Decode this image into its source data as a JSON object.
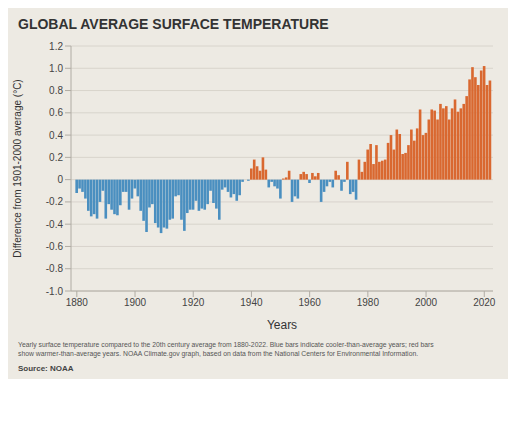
{
  "chart_data": {
    "type": "bar",
    "title": "GLOBAL AVERAGE SURFACE TEMPERATURE",
    "x_label": "Years",
    "y_label": "Difference from 1901-2000 average (°C)",
    "caption": [
      "Yearly surface temperature compared to the 20th century average from 1880-2022. Blue bars indicate cooler-than-average years; red bars",
      "show warmer-than-average years. NOAA Climate.gov graph, based on data from the National Centers for Environmental Information."
    ],
    "source": "Source: NOAA",
    "x": [
      1880,
      1881,
      1882,
      1883,
      1884,
      1885,
      1886,
      1887,
      1888,
      1889,
      1890,
      1891,
      1892,
      1893,
      1894,
      1895,
      1896,
      1897,
      1898,
      1899,
      1900,
      1901,
      1902,
      1903,
      1904,
      1905,
      1906,
      1907,
      1908,
      1909,
      1910,
      1911,
      1912,
      1913,
      1914,
      1915,
      1916,
      1917,
      1918,
      1919,
      1920,
      1921,
      1922,
      1923,
      1924,
      1925,
      1926,
      1927,
      1928,
      1929,
      1930,
      1931,
      1932,
      1933,
      1934,
      1935,
      1936,
      1937,
      1938,
      1939,
      1940,
      1941,
      1942,
      1943,
      1944,
      1945,
      1946,
      1947,
      1948,
      1949,
      1950,
      1951,
      1952,
      1953,
      1954,
      1955,
      1956,
      1957,
      1958,
      1959,
      1960,
      1961,
      1962,
      1963,
      1964,
      1965,
      1966,
      1967,
      1968,
      1969,
      1970,
      1971,
      1972,
      1973,
      1974,
      1975,
      1976,
      1977,
      1978,
      1979,
      1980,
      1981,
      1982,
      1983,
      1984,
      1985,
      1986,
      1987,
      1988,
      1989,
      1990,
      1991,
      1992,
      1993,
      1994,
      1995,
      1996,
      1997,
      1998,
      1999,
      2000,
      2001,
      2002,
      2003,
      2004,
      2005,
      2006,
      2007,
      2008,
      2009,
      2010,
      2011,
      2012,
      2013,
      2014,
      2015,
      2016,
      2017,
      2018,
      2019,
      2020,
      2021,
      2022
    ],
    "values": [
      -0.12,
      -0.08,
      -0.11,
      -0.17,
      -0.28,
      -0.33,
      -0.31,
      -0.35,
      -0.2,
      -0.1,
      -0.35,
      -0.22,
      -0.27,
      -0.31,
      -0.32,
      -0.23,
      -0.11,
      -0.11,
      -0.27,
      -0.17,
      -0.08,
      -0.15,
      -0.28,
      -0.37,
      -0.47,
      -0.25,
      -0.22,
      -0.39,
      -0.43,
      -0.48,
      -0.43,
      -0.44,
      -0.36,
      -0.35,
      -0.15,
      -0.14,
      -0.36,
      -0.46,
      -0.3,
      -0.27,
      -0.27,
      -0.19,
      -0.28,
      -0.26,
      -0.27,
      -0.22,
      -0.1,
      -0.21,
      -0.26,
      -0.36,
      -0.09,
      -0.07,
      -0.11,
      -0.16,
      -0.13,
      -0.19,
      -0.14,
      -0.02,
      -0.0,
      -0.01,
      0.1,
      0.18,
      0.12,
      0.08,
      0.2,
      0.09,
      -0.07,
      -0.02,
      -0.06,
      -0.08,
      -0.17,
      0.01,
      0.02,
      0.08,
      -0.2,
      -0.15,
      -0.17,
      0.05,
      0.07,
      0.05,
      -0.03,
      0.06,
      0.03,
      0.06,
      -0.2,
      -0.11,
      -0.06,
      -0.02,
      -0.07,
      0.08,
      0.04,
      -0.1,
      -0.02,
      0.16,
      -0.13,
      -0.11,
      -0.18,
      0.18,
      0.07,
      0.16,
      0.27,
      0.32,
      0.14,
      0.31,
      0.16,
      0.17,
      0.18,
      0.33,
      0.4,
      0.27,
      0.45,
      0.41,
      0.23,
      0.24,
      0.31,
      0.45,
      0.35,
      0.46,
      0.63,
      0.4,
      0.42,
      0.54,
      0.63,
      0.62,
      0.54,
      0.68,
      0.64,
      0.66,
      0.54,
      0.64,
      0.72,
      0.61,
      0.64,
      0.68,
      0.75,
      0.9,
      1.01,
      0.92,
      0.85,
      0.98,
      1.02,
      0.85,
      0.89
    ],
    "colors": [
      "#4a8fc0",
      "#4a8fc0",
      "#4a8fc0",
      "#4a8fc0",
      "#4a8fc0",
      "#4a8fc0",
      "#4a8fc0",
      "#4a8fc0",
      "#4a8fc0",
      "#4a8fc0",
      "#4a8fc0",
      "#4a8fc0",
      "#4a8fc0",
      "#4a8fc0",
      "#4a8fc0",
      "#4a8fc0",
      "#4a8fc0",
      "#4a8fc0",
      "#4a8fc0",
      "#4a8fc0",
      "#4a8fc0",
      "#4a8fc0",
      "#4a8fc0",
      "#4a8fc0",
      "#4a8fc0",
      "#4a8fc0",
      "#4a8fc0",
      "#4a8fc0",
      "#4a8fc0",
      "#4a8fc0",
      "#4a8fc0",
      "#4a8fc0",
      "#4a8fc0",
      "#4a8fc0",
      "#4a8fc0",
      "#4a8fc0",
      "#4a8fc0",
      "#4a8fc0",
      "#4a8fc0",
      "#4a8fc0",
      "#4a8fc0",
      "#4a8fc0",
      "#4a8fc0",
      "#4a8fc0",
      "#4a8fc0",
      "#4a8fc0",
      "#4a8fc0",
      "#4a8fc0",
      "#4a8fc0",
      "#4a8fc0",
      "#4a8fc0",
      "#4a8fc0",
      "#4a8fc0",
      "#4a8fc0",
      "#4a8fc0",
      "#4a8fc0",
      "#4a8fc0",
      "#4a8fc0",
      "#d96830",
      "#4a8fc0",
      "#d96830",
      "#d96830",
      "#d96830",
      "#d96830",
      "#d96830",
      "#d96830",
      "#4a8fc0",
      "#4a8fc0",
      "#4a8fc0",
      "#4a8fc0",
      "#4a8fc0",
      "#d96830",
      "#d96830",
      "#d96830",
      "#4a8fc0",
      "#4a8fc0",
      "#4a8fc0",
      "#d96830",
      "#d96830",
      "#d96830",
      "#4a8fc0",
      "#d96830",
      "#d96830",
      "#d96830",
      "#4a8fc0",
      "#4a8fc0",
      "#4a8fc0",
      "#4a8fc0",
      "#4a8fc0",
      "#d96830",
      "#d96830",
      "#4a8fc0",
      "#4a8fc0",
      "#d96830",
      "#4a8fc0",
      "#4a8fc0",
      "#4a8fc0",
      "#d96830",
      "#d96830",
      "#d96830",
      "#d96830",
      "#d96830",
      "#d96830",
      "#d96830",
      "#d96830",
      "#d96830",
      "#d96830",
      "#d96830",
      "#d96830",
      "#d96830",
      "#d96830",
      "#d96830",
      "#d96830",
      "#d96830",
      "#d96830",
      "#d96830",
      "#d96830",
      "#d96830",
      "#d96830",
      "#d96830",
      "#d96830",
      "#d96830",
      "#d96830",
      "#d96830",
      "#d96830",
      "#d96830",
      "#d96830",
      "#d96830",
      "#d96830",
      "#d96830",
      "#d96830",
      "#d96830",
      "#d96830",
      "#d96830",
      "#d96830",
      "#d96830",
      "#d96830",
      "#d96830",
      "#d96830",
      "#d96830",
      "#d96830",
      "#d96830",
      "#d96830"
    ],
    "xlim": [
      1878,
      2023
    ],
    "xticks": [
      1880,
      1900,
      1920,
      1940,
      1960,
      1980,
      2000,
      2020
    ],
    "ylim": [
      -1.0,
      1.2
    ],
    "yticks": [
      {
        "value": -1.0,
        "label": "-1.0"
      },
      -0.8,
      -0.6,
      -0.4,
      -0.2,
      0,
      0.2,
      0.4,
      0.6,
      0.8,
      {
        "value": 1.0,
        "label": "1.0"
      },
      1.2
    ],
    "grid": true
  }
}
